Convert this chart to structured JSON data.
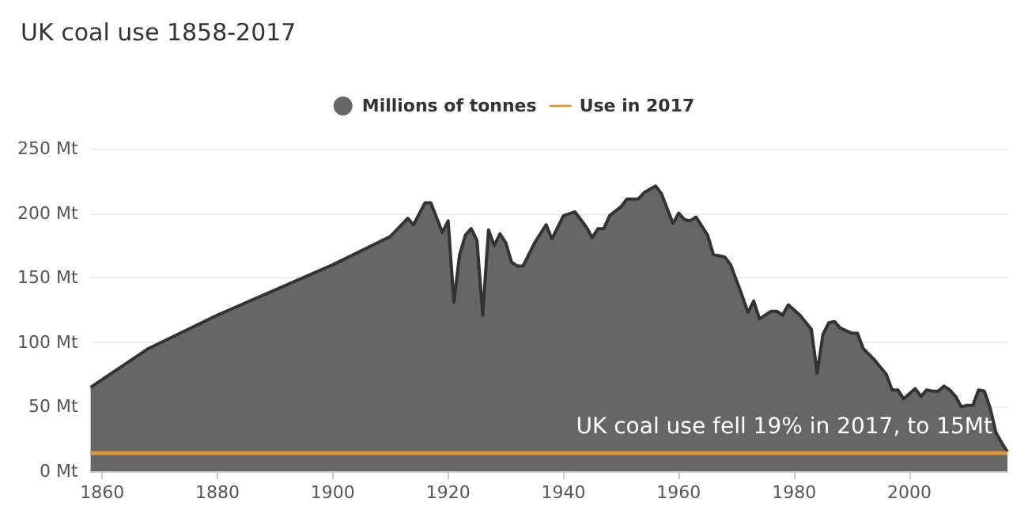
{
  "chart_data": {
    "type": "area",
    "title": "UK coal use 1858-2017",
    "x": [
      1858,
      1868,
      1880,
      1900,
      1910,
      1913,
      1914,
      1916,
      1917,
      1919,
      1920,
      1921,
      1922,
      1923,
      1924,
      1925,
      1926,
      1927,
      1928,
      1929,
      1930,
      1931,
      1932,
      1933,
      1935,
      1937,
      1938,
      1940,
      1942,
      1944,
      1945,
      1946,
      1947,
      1948,
      1950,
      1951,
      1953,
      1954,
      1956,
      1957,
      1959,
      1960,
      1961,
      1962,
      1963,
      1965,
      1966,
      1968,
      1969,
      1971,
      1972,
      1973,
      1974,
      1976,
      1977,
      1978,
      1979,
      1981,
      1983,
      1984,
      1985,
      1986,
      1987,
      1988,
      1990,
      1991,
      1992,
      1994,
      1996,
      1997,
      1998,
      1999,
      2000,
      2001,
      2002,
      2003,
      2004,
      2005,
      2006,
      2007,
      2008,
      2009,
      2010,
      2011,
      2012,
      2013,
      2014,
      2015,
      2016,
      2017
    ],
    "series": [
      {
        "name": "Millions of tonnes",
        "color": "#666666",
        "values": [
          65,
          95,
          121,
          160,
          182,
          196,
          191,
          208,
          208,
          185,
          194,
          131,
          168,
          183,
          188,
          179,
          121,
          187,
          175,
          184,
          177,
          162,
          159,
          159,
          177,
          191,
          180,
          198,
          201,
          189,
          181,
          188,
          188,
          198,
          205,
          211,
          211,
          216,
          221,
          215,
          192,
          200,
          195,
          194,
          197,
          183,
          168,
          166,
          160,
          136,
          123,
          132,
          118,
          124,
          124,
          121,
          129,
          121,
          110,
          76,
          106,
          115,
          116,
          111,
          107,
          107,
          95,
          86,
          75,
          63,
          63,
          56,
          60,
          64,
          58,
          63,
          62,
          62,
          66,
          63,
          58,
          50,
          51,
          51,
          63,
          62,
          49,
          30,
          22,
          15
        ]
      }
    ],
    "xlim": [
      1858,
      2017
    ],
    "xticks": [
      1860,
      1880,
      1900,
      1920,
      1940,
      1960,
      1980,
      2000
    ],
    "ylim": [
      0,
      250
    ],
    "yticks": [
      {
        "value": 0,
        "label": "0 Mt"
      },
      {
        "value": 50,
        "label": "50 Mt"
      },
      {
        "value": 100,
        "label": "100 Mt"
      },
      {
        "value": 150,
        "label": "150 Mt"
      },
      {
        "value": 200,
        "label": "200 Mt"
      },
      {
        "value": 250,
        "label": "250 Mt"
      }
    ],
    "ref_lines": [
      {
        "axis": "y",
        "value": 15,
        "label": "Use in 2017",
        "color": "#e0963a"
      }
    ],
    "annotations": [
      {
        "text": "UK coal use fell 19% in 2017, to 15Mt",
        "x": 2017,
        "y": 15
      }
    ],
    "grid": "y",
    "legend": "top",
    "marker": "none"
  }
}
